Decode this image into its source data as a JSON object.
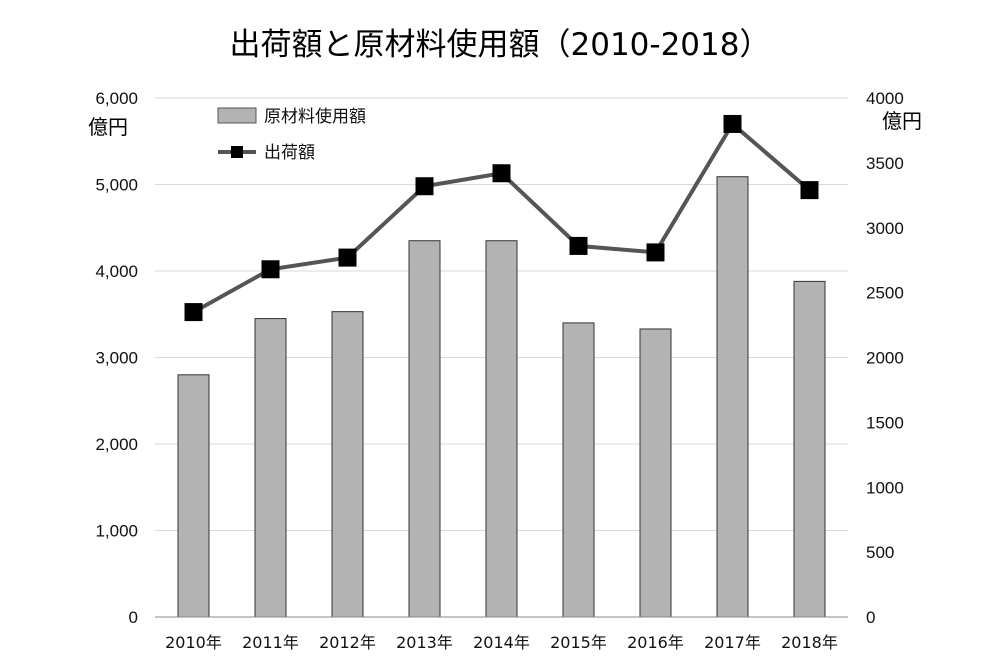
{
  "chart_data": {
    "type": "bar",
    "title": "出荷額と原材料使用額（2010-2018）",
    "categories": [
      "2010年",
      "2011年",
      "2012年",
      "2013年",
      "2014年",
      "2015年",
      "2016年",
      "2017年",
      "2018年"
    ],
    "series": [
      {
        "name": "原材料使用額",
        "type": "bar",
        "axis": "left",
        "color": "#b3b3b3",
        "values": [
          2800,
          3450,
          3530,
          4350,
          4350,
          3400,
          3330,
          5090,
          3880
        ]
      },
      {
        "name": "出荷額",
        "type": "line",
        "axis": "right",
        "color": "#555555",
        "marker_color": "#000000",
        "values": [
          2350,
          2680,
          2770,
          3320,
          3420,
          2860,
          2810,
          3800,
          3290
        ]
      }
    ],
    "y_left": {
      "unit": "億円",
      "ylim": [
        0,
        6000
      ],
      "ticks": [
        "0",
        "1,000",
        "2,000",
        "3,000",
        "4,000",
        "5,000",
        "6,000"
      ]
    },
    "y_right": {
      "unit": "億円",
      "ylim": [
        0,
        4000
      ],
      "ticks": [
        "0",
        "500",
        "1000",
        "1500",
        "2000",
        "2500",
        "3000",
        "3500",
        "4000"
      ]
    },
    "grid": true,
    "legend": "top-left"
  }
}
